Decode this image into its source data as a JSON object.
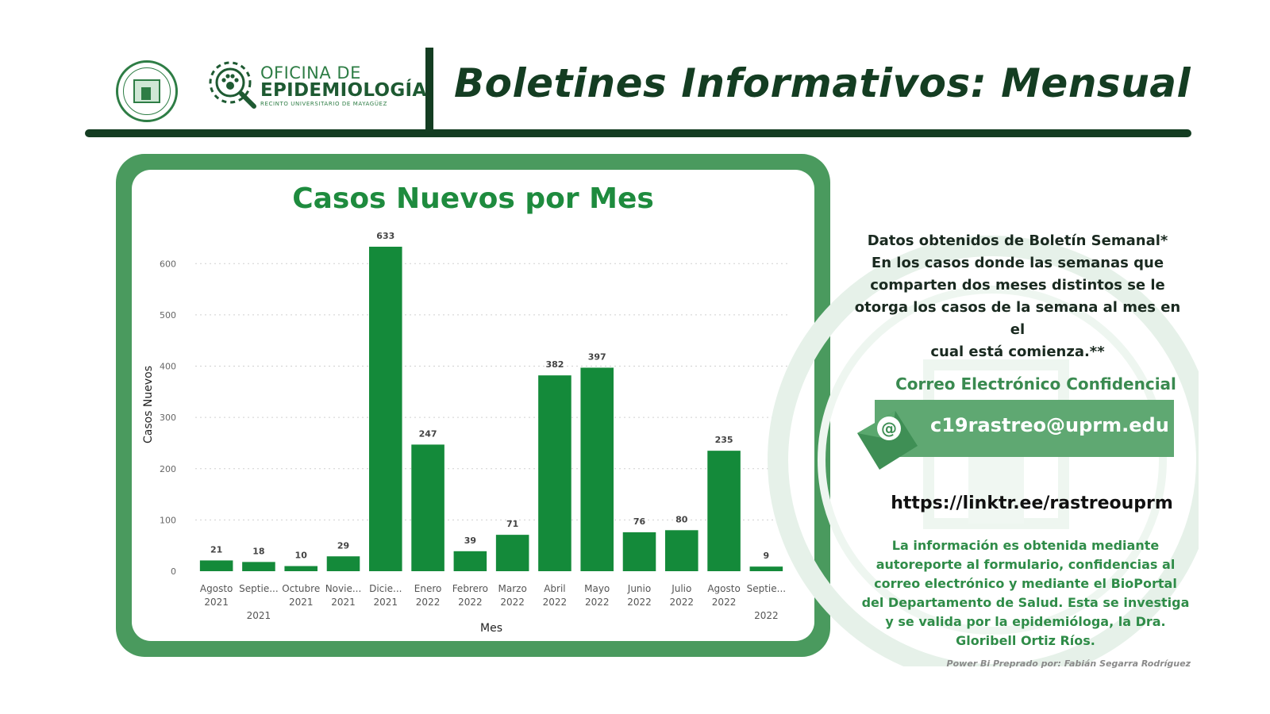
{
  "header": {
    "office_line1": "OFICINA DE",
    "office_line2": "EPIDEMIOLOGÍA",
    "office_line3": "RECINTO UNIVERSITARIO DE MAYAGÜEZ",
    "title": "Boletines Informativos:  Mensual"
  },
  "chart_data": {
    "type": "bar",
    "title": "Casos Nuevos por Mes",
    "xlabel": "Mes",
    "ylabel": "Casos Nuevos",
    "ylim": [
      0,
      650
    ],
    "yticks": [
      0,
      100,
      200,
      300,
      400,
      500,
      600
    ],
    "grid": true,
    "categories": [
      [
        "Agosto",
        "2021"
      ],
      [
        "Septie...",
        "2021"
      ],
      [
        "Octubre",
        "2021"
      ],
      [
        "Novie...",
        "2021"
      ],
      [
        "Dicie...",
        "2021"
      ],
      [
        "Enero",
        "2022"
      ],
      [
        "Febrero",
        "2022"
      ],
      [
        "Marzo",
        "2022"
      ],
      [
        "Abril",
        "2022"
      ],
      [
        "Mayo",
        "2022"
      ],
      [
        "Junio",
        "2022"
      ],
      [
        "Julio",
        "2022"
      ],
      [
        "Agosto",
        "2022"
      ],
      [
        "Septie...",
        "2022"
      ]
    ],
    "values": [
      21,
      18,
      10,
      29,
      633,
      247,
      39,
      71,
      382,
      397,
      76,
      80,
      235,
      9
    ],
    "bar_color": "#148a3a"
  },
  "panel": {
    "note_lines": [
      "Datos obtenidos de Boletín Semanal*",
      "En los casos donde las semanas que",
      "comparten dos meses distintos se le",
      "otorga los casos de la semana al mes en el",
      "cual está comienza.**"
    ],
    "email_heading": "Correo Electrónico Confidencial",
    "email": "c19rastreo@uprm.edu",
    "link": "https://linktr.ee/rastreouprm",
    "info_lines": [
      "La información es obtenida mediante",
      "autoreporte al formulario, confidencias al",
      "correo electrónico y mediante el BioPortal",
      "del Departamento de Salud. Esta se investiga",
      "y se valida por la epidemióloga, la Dra.",
      "Gloribell Ortiz Ríos."
    ],
    "credit": "Power Bi Preprado por: Fabián Segarra Rodríguez"
  }
}
